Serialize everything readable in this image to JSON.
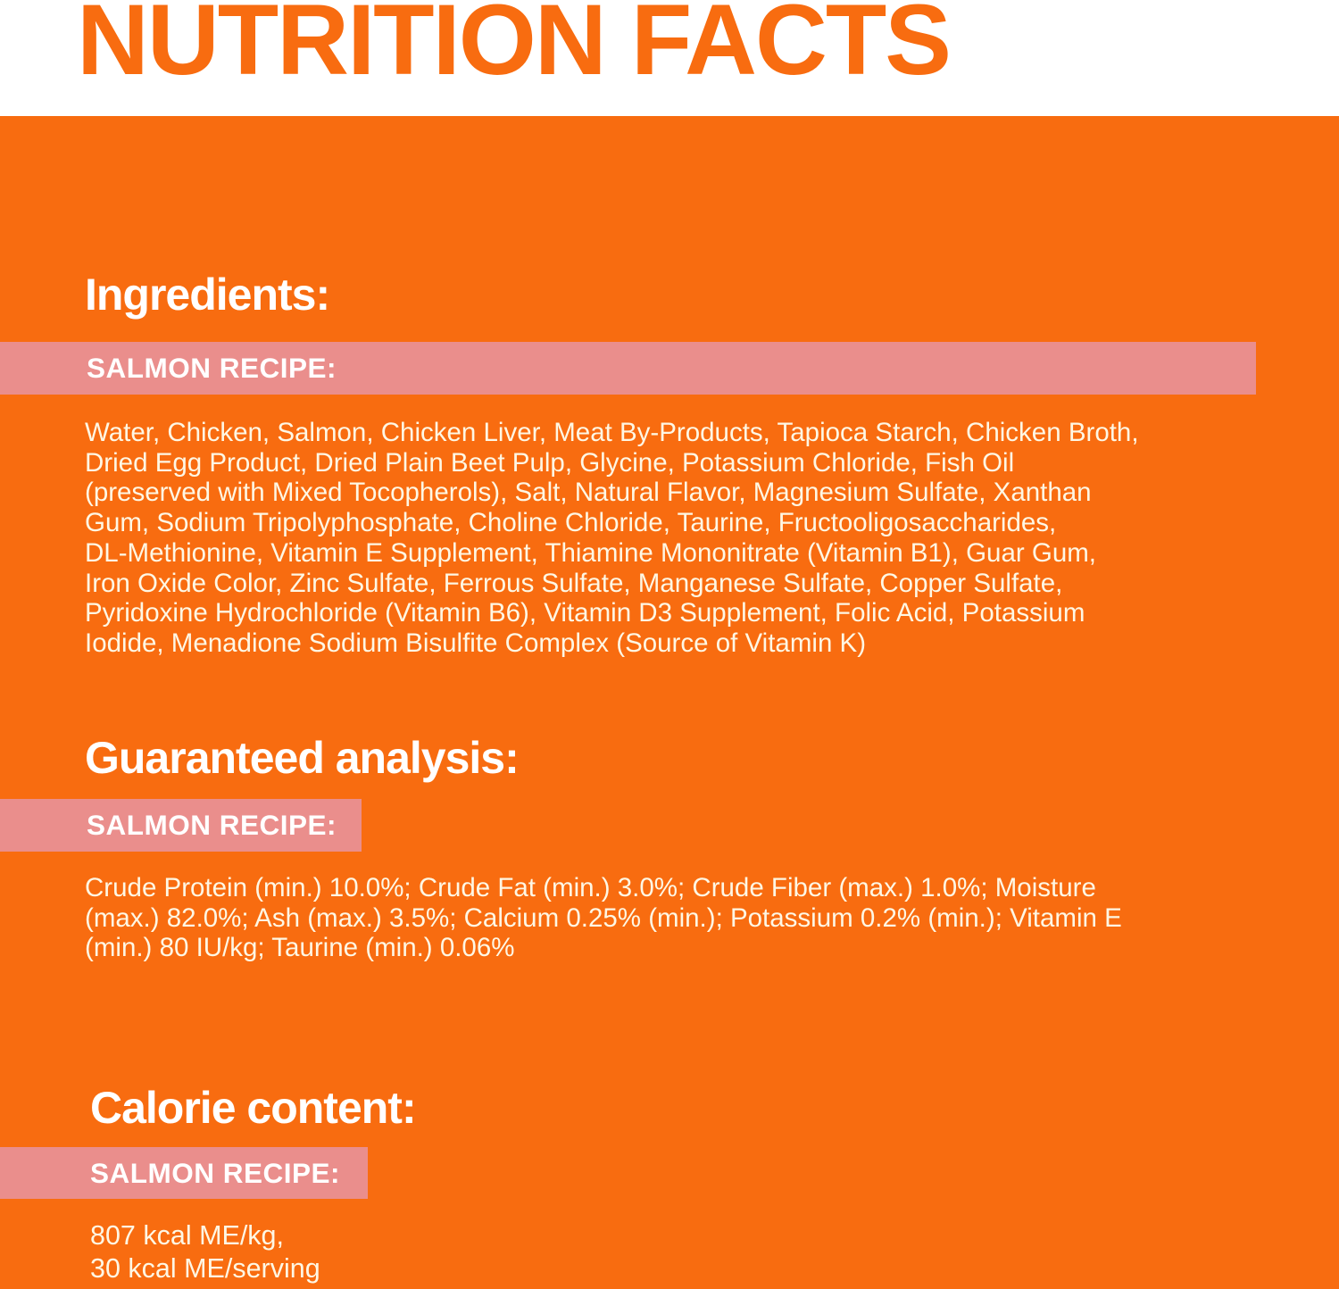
{
  "title": "NUTRITION FACTS",
  "colors": {
    "background_orange": "#F86C10",
    "banner_pink": "#EA8E8C",
    "heading_white": "#FFFFFF",
    "body_cream": "#FEF7E4",
    "title_orange_on_white": "#F86C10"
  },
  "sections": {
    "ingredients": {
      "heading": "Ingredients:",
      "recipe_label": "SALMON RECIPE:",
      "body": "Water, Chicken, Salmon, Chicken Liver, Meat By-Products, Tapioca Starch, Chicken Broth,\nDried Egg Product, Dried Plain Beet Pulp, Glycine, Potassium Chloride, Fish Oil\n(preserved with Mixed Tocopherols), Salt, Natural Flavor, Magnesium Sulfate, Xanthan\nGum, Sodium Tripolyphosphate, Choline Chloride, Taurine, Fructooligosaccharides,\nDL-Methionine, Vitamin E Supplement, Thiamine Mononitrate (Vitamin B1), Guar Gum,\nIron Oxide Color, Zinc Sulfate, Ferrous Sulfate, Manganese Sulfate, Copper Sulfate,\nPyridoxine Hydrochloride (Vitamin B6), Vitamin D3 Supplement, Folic Acid, Potassium\nIodide, Menadione Sodium Bisulfite Complex (Source of Vitamin K)"
    },
    "guaranteed_analysis": {
      "heading": "Guaranteed analysis:",
      "recipe_label": "SALMON RECIPE:",
      "body": "Crude Protein (min.) 10.0%; Crude Fat (min.) 3.0%; Crude Fiber (max.) 1.0%; Moisture\n(max.) 82.0%; Ash (max.) 3.5%; Calcium 0.25% (min.); Potassium 0.2% (min.); Vitamin E\n(min.) 80 IU/kg; Taurine (min.) 0.06%"
    },
    "calorie_content": {
      "heading": "Calorie content:",
      "recipe_label": "SALMON RECIPE:",
      "body": "807 kcal ME/kg,\n30 kcal ME/serving"
    }
  }
}
